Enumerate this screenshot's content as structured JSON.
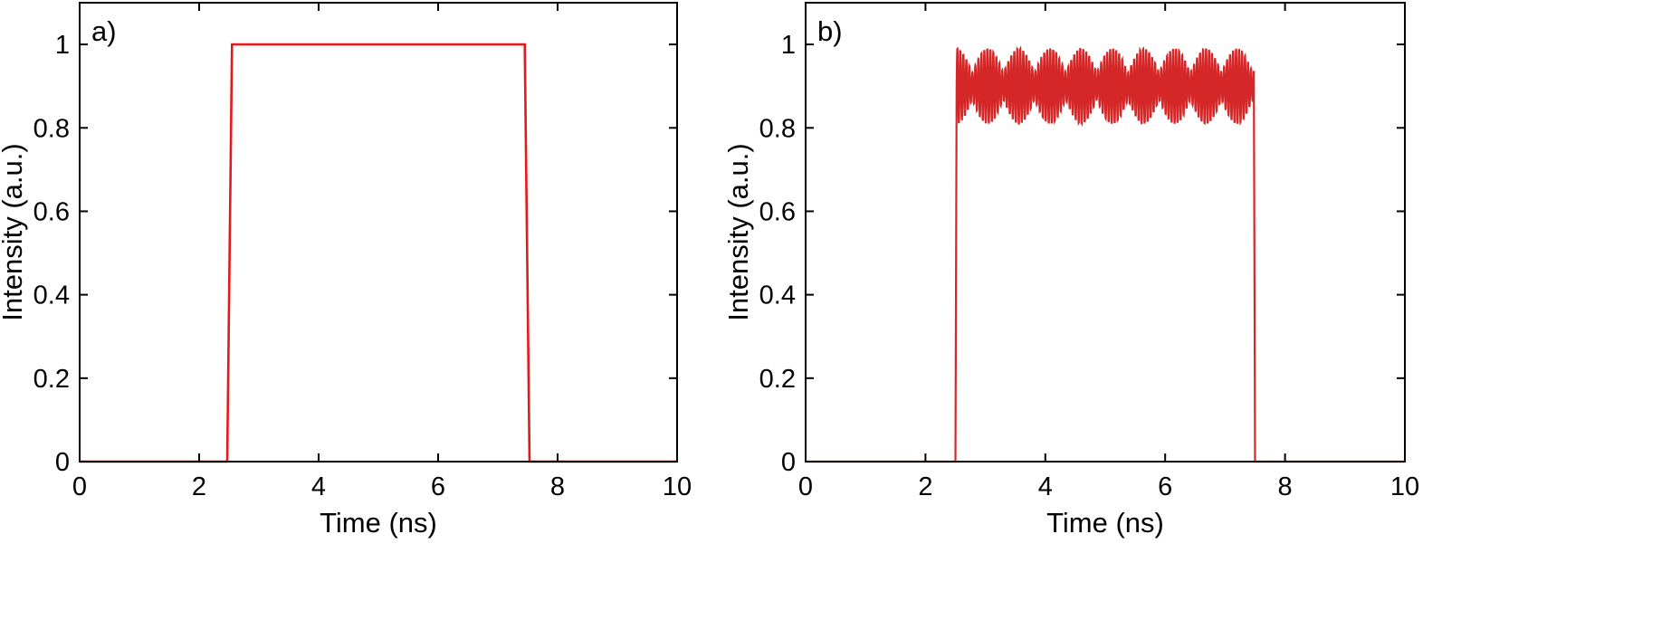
{
  "chart_data": [
    {
      "type": "line",
      "panel_label": "a)",
      "xlabel": "Time (ns)",
      "ylabel": "Intensity (a.u.)",
      "xlim": [
        0,
        10
      ],
      "ylim": [
        0,
        1.1
      ],
      "xticks": [
        0,
        2,
        4,
        6,
        8,
        10
      ],
      "yticks": [
        0,
        0.2,
        0.4,
        0.6,
        0.8,
        1
      ],
      "xtick_labels": [
        "0",
        "2",
        "4",
        "6",
        "8",
        "10"
      ],
      "ytick_labels": [
        "0",
        "0.2",
        "0.4",
        "0.6",
        "0.8",
        "1"
      ],
      "grid": false,
      "series": [
        {
          "color": "#e31a1c",
          "x": [
            0,
            2.47,
            2.55,
            7.45,
            7.53,
            10
          ],
          "y": [
            0,
            0,
            1,
            1,
            0,
            0
          ]
        }
      ]
    },
    {
      "type": "line",
      "panel_label": "b)",
      "xlabel": "Time (ns)",
      "ylabel": "Intensity (a.u.)",
      "xlim": [
        0,
        10
      ],
      "ylim": [
        0,
        1.1
      ],
      "xticks": [
        0,
        2,
        4,
        6,
        8,
        10
      ],
      "yticks": [
        0,
        0.2,
        0.4,
        0.6,
        0.8,
        1
      ],
      "xtick_labels": [
        "0",
        "2",
        "4",
        "6",
        "8",
        "10"
      ],
      "ytick_labels": [
        "0",
        "0.2",
        "0.4",
        "0.6",
        "0.8",
        "1"
      ],
      "grid": false,
      "series": [
        {
          "color": "#d62728",
          "x": [
            0,
            2.5,
            2.52,
            7.48,
            7.5,
            10
          ],
          "y": [
            0,
            0,
            0.9,
            0.9,
            0,
            0
          ],
          "oscillation": {
            "x_start": 2.52,
            "x_end": 7.48,
            "mean": 0.9,
            "amplitude": 0.09,
            "period_ns": 0.05,
            "beat_period_ns": 0.52
          }
        }
      ]
    }
  ]
}
